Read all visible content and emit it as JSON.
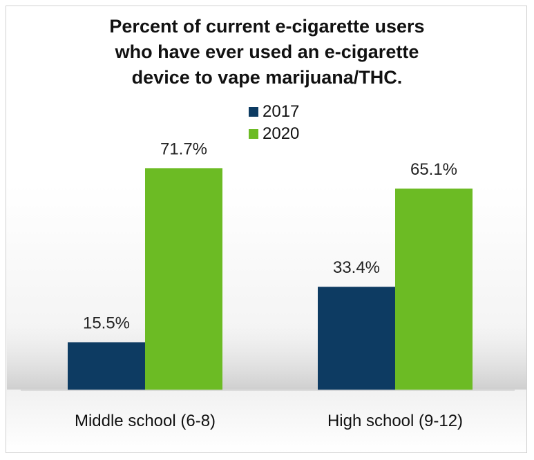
{
  "chart_data": {
    "type": "bar",
    "title_lines": [
      "Percent of current e-cigarette users",
      "who have ever used an e-cigarette",
      "device to vape marijuana/THC."
    ],
    "categories": [
      "Middle school (6-8)",
      "High school (9-12)"
    ],
    "series": [
      {
        "name": "2017",
        "color": "#0d3b62",
        "values": [
          15.5,
          33.4
        ],
        "labels": [
          "15.5%",
          "33.4%"
        ]
      },
      {
        "name": "2020",
        "color": "#6cbb24",
        "values": [
          71.7,
          65.1
        ],
        "labels": [
          "71.7%",
          "65.1%"
        ]
      }
    ],
    "xlabel": "",
    "ylabel": "",
    "ylim": [
      0,
      80
    ],
    "grid": false,
    "legend_position": "top-center"
  }
}
